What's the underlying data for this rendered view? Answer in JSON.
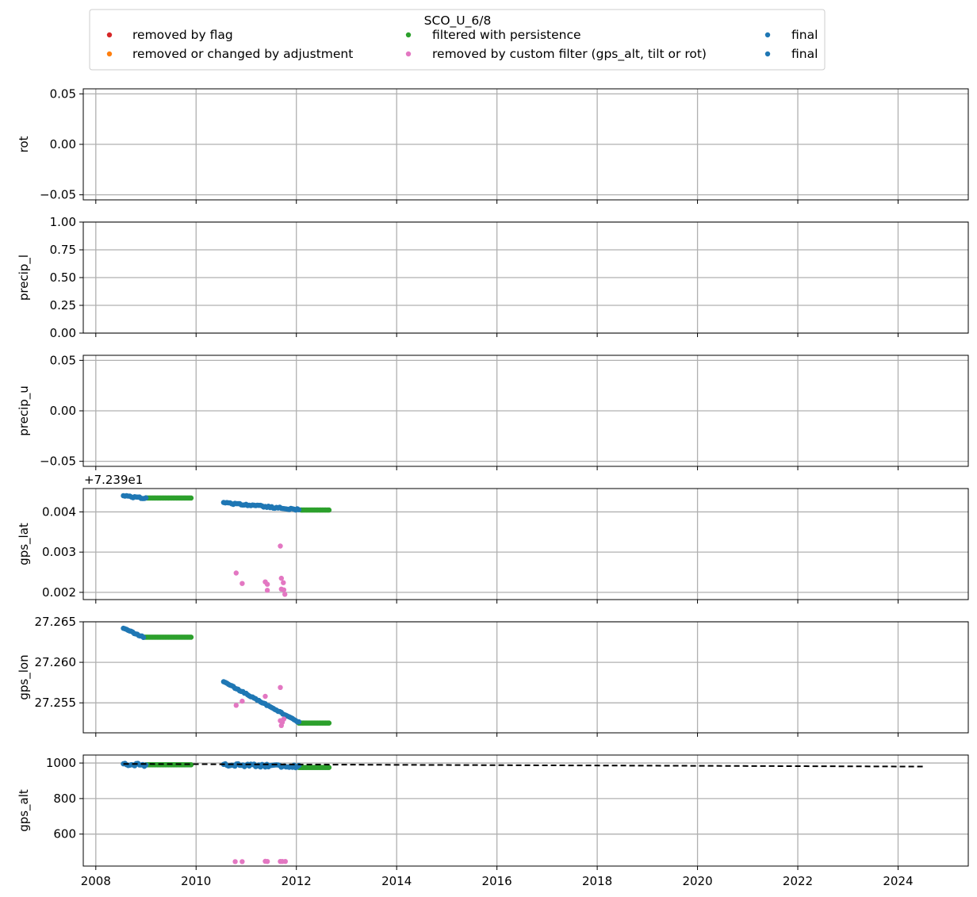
{
  "chart_data": {
    "type": "scatter",
    "x_axis": {
      "ticks": [
        2008,
        2010,
        2012,
        2014,
        2016,
        2018,
        2020,
        2022,
        2024
      ],
      "tick_labels": [
        "2008",
        "2010",
        "2012",
        "2014",
        "2016",
        "2018",
        "2020",
        "2022",
        "2024"
      ],
      "xlim": [
        2007.75,
        2025.4
      ]
    },
    "legend": {
      "title": "SCO_U_6/8",
      "placement": "top-center",
      "entries": [
        {
          "label": "removed by flag",
          "color": "#d62728"
        },
        {
          "label": "removed or changed by adjustment",
          "color": "#ff7f0e"
        },
        {
          "label": "filtered with persistence",
          "color": "#2ca02c"
        },
        {
          "label": "removed by custom filter (gps_alt, tilt or rot)",
          "color": "#e377c2"
        },
        {
          "label": "final",
          "color": "#1f77b4"
        },
        {
          "label": "final",
          "color": "#1f77b4"
        }
      ]
    },
    "panels": [
      {
        "ylabel": "rot",
        "ylim": [
          -0.055,
          0.055
        ],
        "yticks": [
          -0.05,
          0.0,
          0.05
        ],
        "ytick_labels": [
          "−0.05",
          "0.00",
          "0.05"
        ],
        "offset_text": "",
        "series": []
      },
      {
        "ylabel": "precip_l",
        "ylim": [
          0.0,
          1.0
        ],
        "yticks": [
          0.0,
          0.25,
          0.5,
          0.75,
          1.0
        ],
        "ytick_labels": [
          "0.00",
          "0.25",
          "0.50",
          "0.75",
          "1.00"
        ],
        "offset_text": "",
        "series": []
      },
      {
        "ylabel": "precip_u",
        "ylim": [
          -0.055,
          0.055
        ],
        "yticks": [
          -0.05,
          0.0,
          0.05
        ],
        "ytick_labels": [
          "−0.05",
          "0.00",
          "0.05"
        ],
        "offset_text": "",
        "series": []
      },
      {
        "ylabel": "gps_lat",
        "ylim": [
          0.00182,
          0.00458
        ],
        "yticks": [
          0.002,
          0.003,
          0.004
        ],
        "ytick_labels": [
          "0.002",
          "0.003",
          "0.004"
        ],
        "offset_text": "+7.239e1",
        "series": [
          {
            "color": "#2ca02c",
            "segments": [
              [
                2009.0,
                2009.9,
                0.004345,
                0.004345
              ],
              [
                2012.1,
                2012.65,
                0.004045,
                0.004045
              ]
            ]
          },
          {
            "color": "#1f77b4",
            "segments": [
              [
                2008.55,
                2009.0,
                0.004395,
                0.004335
              ],
              [
                2010.55,
                2012.05,
                0.004225,
                0.004055
              ]
            ],
            "spread": 4e-05
          },
          {
            "color": "#e377c2",
            "points": [
              [
                2010.8,
                0.00248
              ],
              [
                2010.92,
                0.00222
              ],
              [
                2011.38,
                0.00226
              ],
              [
                2011.42,
                0.0022
              ],
              [
                2011.42,
                0.00205
              ],
              [
                2011.68,
                0.00315
              ],
              [
                2011.7,
                0.00235
              ],
              [
                2011.74,
                0.00224
              ],
              [
                2011.7,
                0.00208
              ],
              [
                2011.75,
                0.00206
              ],
              [
                2011.77,
                0.00195
              ]
            ]
          }
        ]
      },
      {
        "ylabel": "gps_lon",
        "ylim": [
          27.2513,
          27.265
        ],
        "yticks": [
          27.255,
          27.26,
          27.265
        ],
        "ytick_labels": [
          "27.255",
          "27.260",
          "27.265"
        ],
        "offset_text": "",
        "series": [
          {
            "color": "#2ca02c",
            "segments": [
              [
                2008.95,
                2009.9,
                27.2631,
                27.2631
              ],
              [
                2012.05,
                2012.65,
                27.2525,
                27.2525
              ]
            ]
          },
          {
            "color": "#1f77b4",
            "segments": [
              [
                2008.55,
                2008.95,
                27.2642,
                27.2631
              ],
              [
                2010.55,
                2012.05,
                27.2576,
                27.2526
              ]
            ],
            "spread": 0.00012
          },
          {
            "color": "#e377c2",
            "points": [
              [
                2010.8,
                27.2547
              ],
              [
                2010.92,
                27.2552
              ],
              [
                2011.38,
                27.2558
              ],
              [
                2011.68,
                27.2569
              ],
              [
                2011.68,
                27.2528
              ],
              [
                2011.72,
                27.2526
              ],
              [
                2011.75,
                27.253
              ],
              [
                2011.7,
                27.2522
              ]
            ]
          }
        ]
      },
      {
        "ylabel": "gps_alt",
        "ylim": [
          420,
          1045
        ],
        "yticks": [
          600,
          800,
          1000
        ],
        "ytick_labels": [
          "600",
          "800",
          "1000"
        ],
        "offset_text": "",
        "series": [
          {
            "color": "#2ca02c",
            "segments": [
              [
                2009.0,
                2009.9,
                990,
                990
              ],
              [
                2012.05,
                2012.65,
                975,
                975
              ]
            ]
          },
          {
            "color": "#1f77b4",
            "segments": [
              [
                2008.55,
                2009.0,
                995,
                990
              ],
              [
                2010.55,
                2012.05,
                992,
                980
              ]
            ],
            "spread": 18
          },
          {
            "color": "#e377c2",
            "points": [
              [
                2010.78,
                445
              ],
              [
                2010.92,
                445
              ],
              [
                2011.38,
                447
              ],
              [
                2011.42,
                446
              ],
              [
                2011.68,
                446
              ],
              [
                2011.72,
                446
              ],
              [
                2011.78,
                446
              ]
            ]
          }
        ],
        "reference_line": {
          "style": "dashed",
          "color": "#000000",
          "x": [
            2008.55,
            2024.55
          ],
          "y": [
            995,
            980
          ]
        }
      }
    ]
  }
}
